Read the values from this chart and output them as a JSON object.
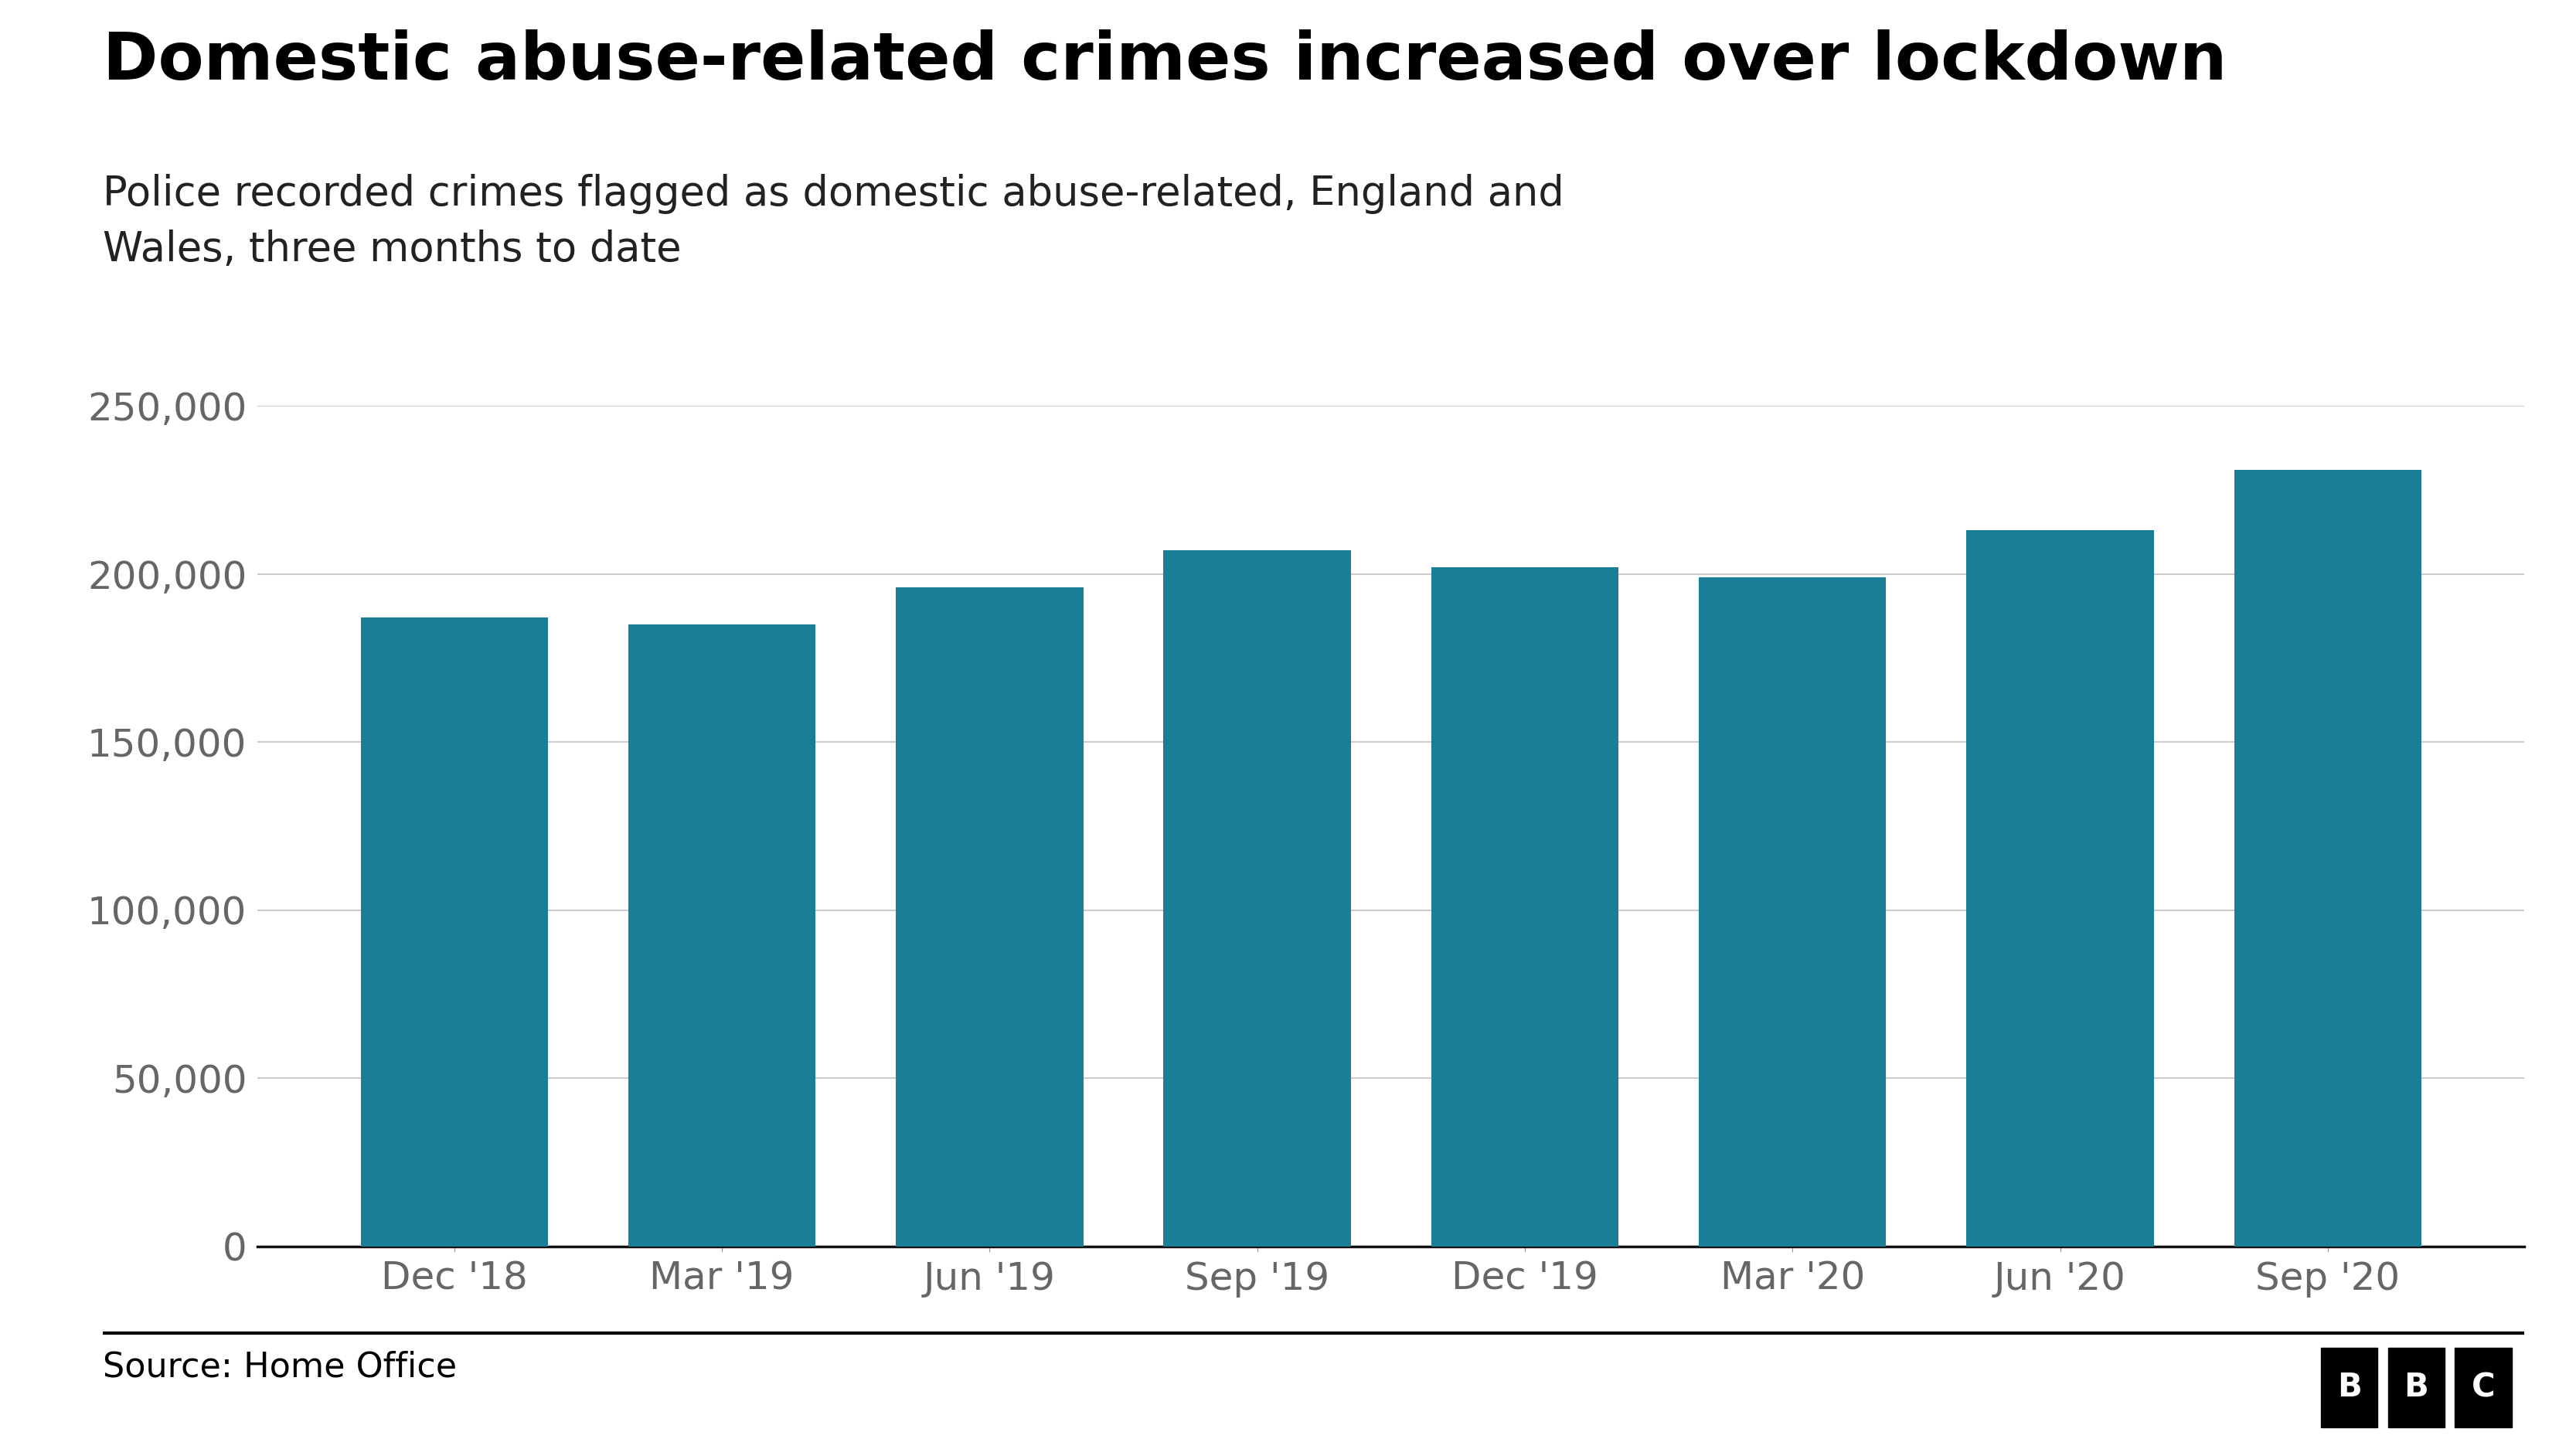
{
  "title": "Domestic abuse-related crimes increased over lockdown",
  "subtitle": "Police recorded crimes flagged as domestic abuse-related, England and\nWales, three months to date",
  "categories": [
    "Dec '18",
    "Mar '19",
    "Jun '19",
    "Sep '19",
    "Dec '19",
    "Mar '20",
    "Jun '20",
    "Sep '20"
  ],
  "values": [
    187000,
    185000,
    196000,
    207000,
    202000,
    199000,
    213000,
    231000
  ],
  "bar_color": "#1a7f96",
  "background_color": "#ffffff",
  "ylim": [
    0,
    250000
  ],
  "yticks": [
    0,
    50000,
    100000,
    150000,
    200000,
    250000
  ],
  "grid_color": "#cccccc",
  "title_fontsize": 62,
  "subtitle_fontsize": 38,
  "tick_fontsize": 36,
  "source_text": "Source: Home Office",
  "source_fontsize": 32,
  "footer_line_color": "#000000",
  "axis_label_color": "#666666",
  "title_color": "#000000",
  "subtitle_color": "#222222",
  "bbc_letters": [
    "B",
    "B",
    "C"
  ]
}
